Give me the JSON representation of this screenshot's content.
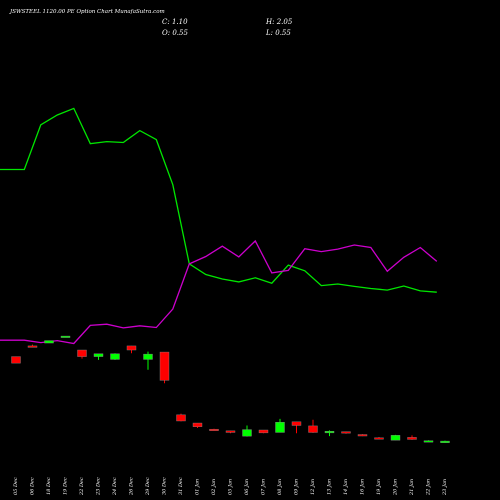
{
  "chart_data": {
    "type": "candlestick+line",
    "title": "JSWSTEEL 1120.00 PE Option Chart MunafaSutra.com",
    "ohlc_summary": {
      "C": "1.10",
      "H": "2.05",
      "O": "0.55",
      "L": "0.55"
    },
    "x_labels": [
      "05 Dec",
      "06 Dec",
      "18 Dec",
      "19 Dec",
      "22 Dec",
      "23 Dec",
      "24 Dec",
      "26 Dec",
      "29 Dec",
      "30 Dec",
      "31 Dec",
      "01 Jan",
      "02 Jan",
      "05 Jan",
      "06 Jan",
      "07 Jan",
      "08 Jan",
      "09 Jan",
      "12 Jan",
      "13 Jan",
      "14 Jan",
      "16 Jan",
      "19 Jan",
      "20 Jan",
      "21 Jan",
      "22 Jan",
      "23 Jan"
    ],
    "candles": [
      {
        "o": 20.7,
        "h": 20.7,
        "l": 19.1,
        "c": 19.1
      },
      {
        "o": 23.3,
        "h": 23.6,
        "l": 23.0,
        "c": 23.0
      },
      {
        "o": 24.0,
        "h": 24.6,
        "l": 24.0,
        "c": 24.6
      },
      {
        "o": 25.7,
        "h": 25.7,
        "l": 25.7,
        "c": 25.7
      },
      {
        "o": 22.3,
        "h": 22.3,
        "l": 20.2,
        "c": 20.7
      },
      {
        "o": 20.7,
        "h": 21.4,
        "l": 19.9,
        "c": 21.4
      },
      {
        "o": 20.0,
        "h": 21.5,
        "l": 19.9,
        "c": 21.4
      },
      {
        "o": 23.3,
        "h": 23.3,
        "l": 21.5,
        "c": 22.3
      },
      {
        "o": 20.0,
        "h": 21.9,
        "l": 17.5,
        "c": 21.3
      },
      {
        "o": 21.8,
        "h": 21.8,
        "l": 14.2,
        "c": 14.9
      },
      {
        "o": 6.5,
        "h": 6.8,
        "l": 4.9,
        "c": 5.0
      },
      {
        "o": 4.5,
        "h": 4.5,
        "l": 3.3,
        "c": 3.6
      },
      {
        "o": 3.0,
        "h": 3.1,
        "l": 2.7,
        "c": 2.7
      },
      {
        "o": 2.6,
        "h": 2.6,
        "l": 2.0,
        "c": 2.2
      },
      {
        "o": 1.3,
        "h": 3.9,
        "l": 1.2,
        "c": 2.9
      },
      {
        "o": 2.8,
        "h": 2.8,
        "l": 2.0,
        "c": 2.1
      },
      {
        "o": 2.2,
        "h": 5.5,
        "l": 2.2,
        "c": 4.7
      },
      {
        "o": 4.8,
        "h": 4.8,
        "l": 2.0,
        "c": 3.9
      },
      {
        "o": 3.8,
        "h": 5.3,
        "l": 2.1,
        "c": 2.2
      },
      {
        "o": 2.1,
        "h": 2.7,
        "l": 1.3,
        "c": 2.5
      },
      {
        "o": 2.4,
        "h": 2.4,
        "l": 1.9,
        "c": 2.1
      },
      {
        "o": 1.7,
        "h": 1.8,
        "l": 1.3,
        "c": 1.4
      },
      {
        "o": 0.9,
        "h": 1.1,
        "l": 0.8,
        "c": 0.8
      },
      {
        "o": 0.3,
        "h": 1.6,
        "l": 0.3,
        "c": 1.5
      },
      {
        "o": 1.0,
        "h": 1.5,
        "l": 0.4,
        "c": 0.5
      },
      {
        "o": 0.1,
        "h": 0.3,
        "l": 0.0,
        "c": 0.2
      },
      {
        "o": -0.3,
        "h": 0.2,
        "l": -0.3,
        "c": 0.1
      }
    ],
    "series": [
      {
        "color": "#00e600",
        "values": [
          66.3,
          66.3,
          77.2,
          79.6,
          81.2,
          72.6,
          73.1,
          72.9,
          75.8,
          73.6,
          62.6,
          43.3,
          40.7,
          39.6,
          38.9,
          39.9,
          38.6,
          43.0,
          41.6,
          38.0,
          38.4,
          37.8,
          37.3,
          36.9,
          37.9,
          36.7,
          36.4
        ]
      },
      {
        "color": "#cc00cc",
        "values": [
          24.7,
          24.7,
          24.1,
          24.6,
          23.9,
          28.3,
          28.6,
          27.7,
          28.2,
          27.8,
          32.3,
          43.3,
          45.1,
          47.6,
          45.0,
          48.9,
          41.1,
          41.7,
          47.0,
          46.3,
          46.9,
          47.9,
          47.3,
          41.5,
          44.9,
          47.3,
          43.9
        ]
      }
    ],
    "y_range": [
      -5,
      93
    ],
    "background": "#000000",
    "up_color": "#00ff00",
    "down_color": "#ff0000"
  }
}
